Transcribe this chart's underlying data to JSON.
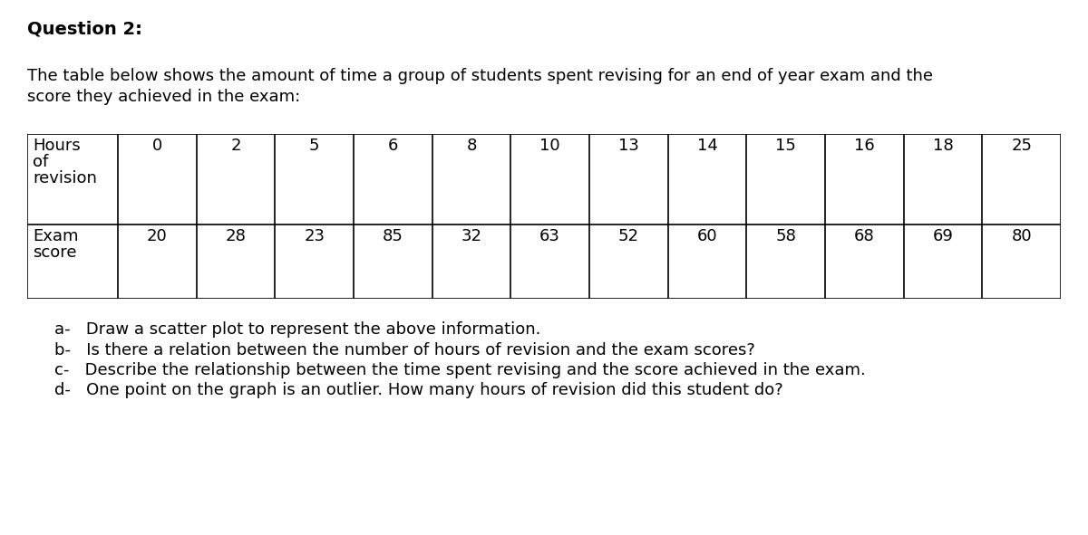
{
  "title": "Question 2:",
  "intro_text_line1": "The table below shows the amount of time a group of students spent revising for an end of year exam and the",
  "intro_text_line2": "score they achieved in the exam:",
  "row1_header_lines": [
    "Hours",
    "of",
    "revision"
  ],
  "row2_header_lines": [
    "Exam",
    "score"
  ],
  "hours": [
    0,
    2,
    5,
    6,
    8,
    10,
    13,
    14,
    15,
    16,
    18,
    25
  ],
  "scores": [
    20,
    28,
    23,
    85,
    32,
    63,
    52,
    60,
    58,
    68,
    69,
    80
  ],
  "questions": [
    "a-   Draw a scatter plot to represent the above information.",
    "b-   Is there a relation between the number of hours of revision and the exam scores?",
    "c-   Describe the relationship between the time spent revising and the score achieved in the exam.",
    "d-   One point on the graph is an outlier. How many hours of revision did this student do?"
  ],
  "bg_color": "#ffffff",
  "text_color": "#000000",
  "title_fontsize": 14,
  "body_fontsize": 13,
  "table_fontsize": 13
}
